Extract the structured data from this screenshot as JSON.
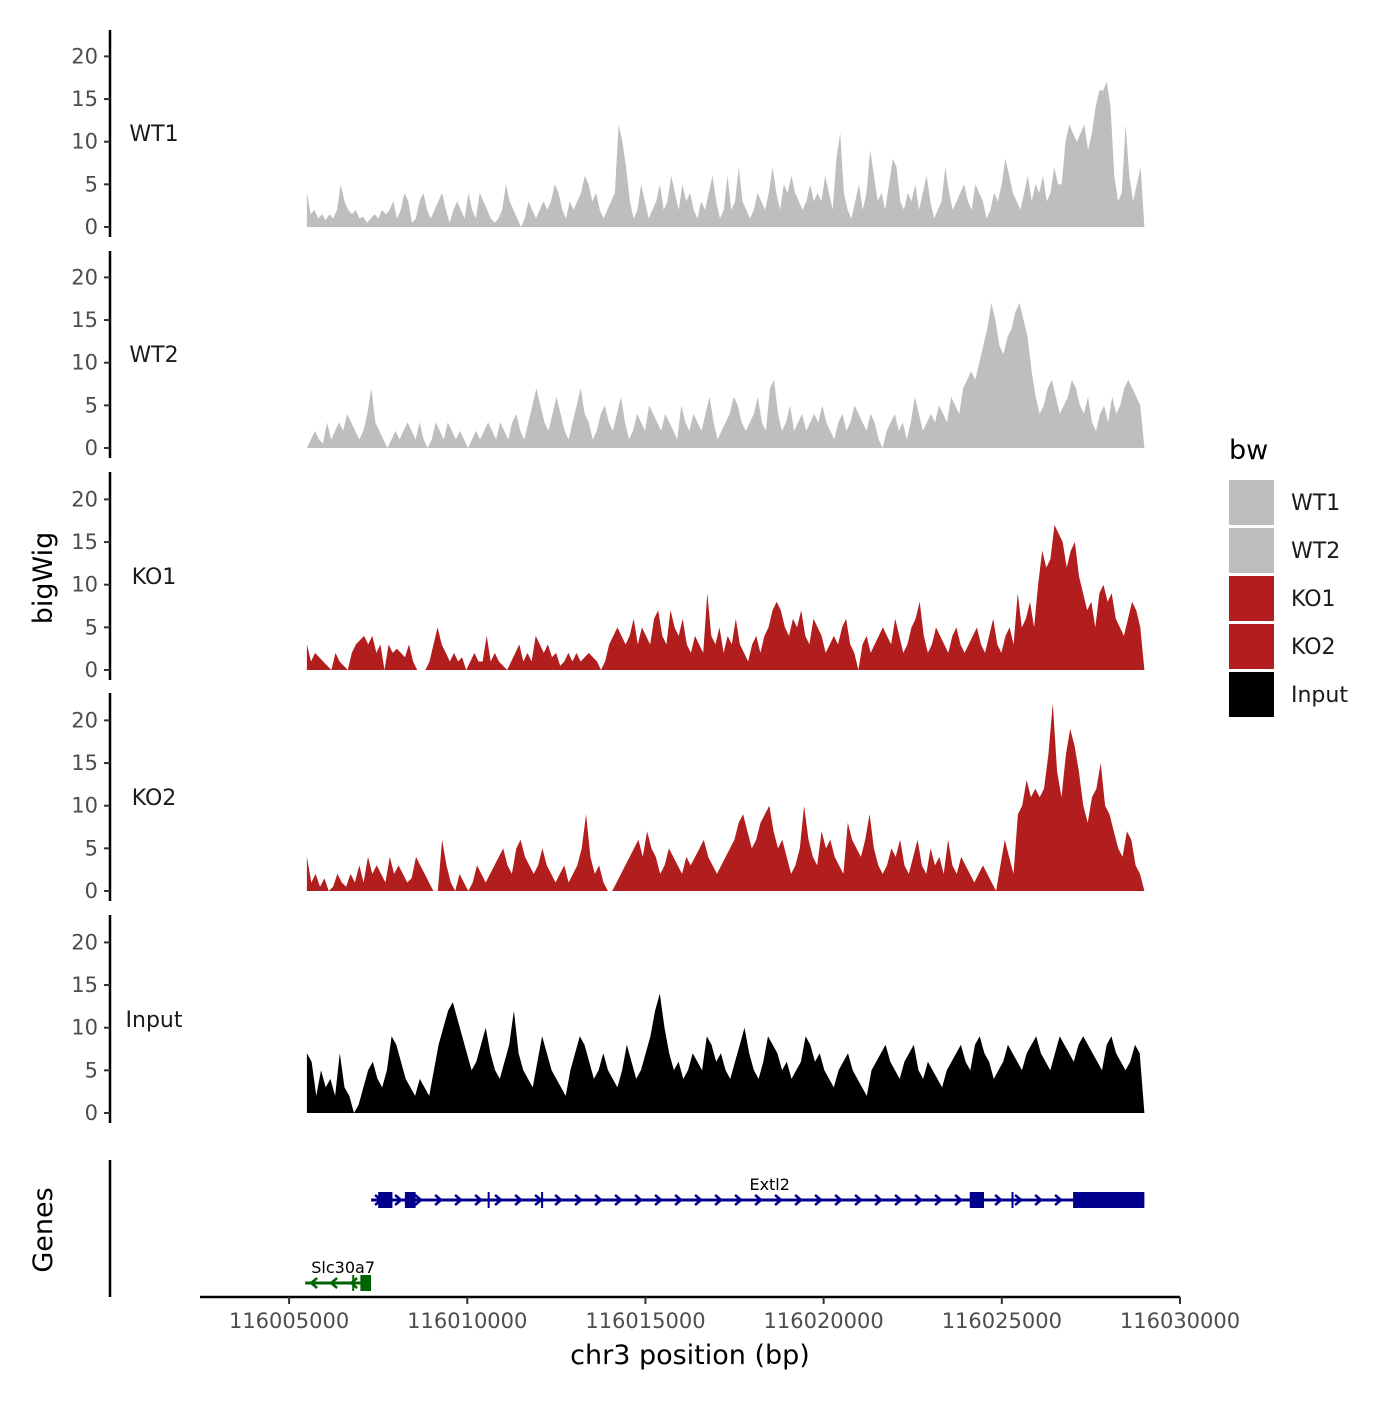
{
  "chart_data": {
    "type": "area",
    "xlabel": "chr3 position (bp)",
    "ylabel": "bigWig",
    "genes_label": "Genes",
    "legend_title": "bw",
    "xlim": [
      116002500,
      116030000
    ],
    "data_start": 116005500,
    "data_end": 116029000,
    "x_ticks": [
      {
        "value": 116005000,
        "label": "116005000"
      },
      {
        "value": 116010000,
        "label": "116010000"
      },
      {
        "value": 116015000,
        "label": "116015000"
      },
      {
        "value": 116020000,
        "label": "116020000"
      },
      {
        "value": 116025000,
        "label": "116025000"
      },
      {
        "value": 116030000,
        "label": "116030000"
      }
    ],
    "ylim": [
      0,
      23
    ],
    "y_ticks": [
      {
        "value": 0,
        "label": "0"
      },
      {
        "value": 5,
        "label": "5"
      },
      {
        "value": 10,
        "label": "10"
      },
      {
        "value": 15,
        "label": "15"
      },
      {
        "value": 20,
        "label": "20"
      }
    ],
    "series": [
      {
        "name": "WT1",
        "color": "#bebebe",
        "values": [
          4,
          1.5,
          2,
          1,
          1.5,
          0.8,
          1.5,
          1,
          2,
          5,
          3,
          2,
          1.5,
          2,
          1,
          1.2,
          0.5,
          1,
          1.5,
          1,
          2,
          1.5,
          2,
          3,
          1,
          2,
          4,
          3,
          0.5,
          1,
          3,
          4,
          2,
          1,
          2,
          3,
          4,
          2,
          0.5,
          2,
          3,
          2,
          1,
          4,
          2,
          1,
          4,
          3,
          2,
          1,
          0.5,
          1,
          2,
          5,
          3,
          2,
          1,
          0,
          1,
          3,
          2,
          1,
          2,
          3,
          2,
          3,
          5,
          4,
          2,
          1,
          3,
          2,
          3,
          4,
          6,
          5,
          3,
          4,
          2,
          1,
          2,
          3,
          4,
          12,
          10,
          7,
          3,
          1,
          2,
          5,
          3,
          1,
          2,
          3,
          5,
          2,
          3,
          6,
          4,
          2,
          5,
          3,
          4,
          2,
          1,
          3,
          2,
          4,
          6,
          3,
          1,
          2,
          6,
          2,
          3,
          7,
          3,
          2,
          1,
          2,
          4,
          3,
          2,
          4,
          7,
          4,
          2,
          5,
          4,
          6,
          4,
          3,
          2,
          3,
          5,
          3,
          4,
          3,
          6,
          4,
          2,
          8,
          11,
          4,
          2,
          1,
          3,
          5,
          2,
          4,
          9,
          6,
          3,
          4,
          2,
          5,
          8,
          7,
          3,
          2,
          4,
          3,
          5,
          2,
          4,
          6,
          3,
          1,
          2,
          3,
          7,
          4,
          2,
          3,
          4,
          5,
          3,
          2,
          5,
          4,
          3,
          1,
          2,
          4,
          3,
          5,
          8,
          6,
          4,
          3,
          2,
          4,
          6,
          3,
          5,
          4,
          6,
          3,
          4,
          7,
          5,
          5,
          10,
          12,
          11,
          10,
          11,
          12,
          9,
          11,
          14,
          16,
          16,
          17,
          14,
          6,
          3,
          4,
          12,
          6,
          3,
          5,
          7,
          0
        ]
      },
      {
        "name": "WT2",
        "color": "#bebebe",
        "values": [
          0,
          1,
          2,
          1,
          0.5,
          3,
          1,
          2,
          3,
          2,
          4,
          3,
          2,
          1,
          2,
          4,
          7,
          3,
          2,
          1,
          0,
          1,
          2,
          1,
          2,
          3,
          2,
          1,
          3,
          1,
          0,
          1,
          3,
          2,
          1,
          3,
          2,
          1,
          2,
          1,
          0,
          1,
          2,
          1,
          2,
          3,
          2,
          1,
          3,
          2,
          1,
          3,
          4,
          2,
          1,
          3,
          5,
          7,
          5,
          3,
          2,
          4,
          6,
          4,
          2,
          1,
          3,
          5,
          7,
          4,
          3,
          1,
          2,
          4,
          5,
          3,
          2,
          4,
          6,
          3,
          1,
          2,
          4,
          3,
          2,
          5,
          4,
          3,
          2,
          4,
          3,
          2,
          1,
          5,
          3,
          2,
          4,
          3,
          2,
          4,
          6,
          3,
          1,
          2,
          3,
          4,
          6,
          5,
          3,
          2,
          3,
          4,
          6,
          3,
          2,
          7,
          8,
          4,
          2,
          3,
          5,
          2,
          3,
          4,
          2,
          3,
          4,
          3,
          5,
          3,
          2,
          1,
          3,
          4,
          2,
          3,
          5,
          4,
          3,
          2,
          4,
          3,
          1,
          0,
          2,
          3,
          4,
          2,
          3,
          1,
          3,
          6,
          4,
          2,
          3,
          4,
          3,
          5,
          4,
          3,
          6,
          5,
          4,
          7,
          8,
          9,
          8,
          10,
          12,
          14,
          17,
          15,
          12,
          11,
          13,
          14,
          16,
          17,
          15,
          13,
          9,
          6,
          4,
          5,
          7,
          8,
          6,
          4,
          5,
          6,
          8,
          7,
          5,
          4,
          6,
          3,
          2,
          4,
          5,
          3,
          6,
          4,
          5,
          7,
          8,
          7,
          6,
          5,
          0
        ]
      },
      {
        "name": "KO1",
        "color": "#b21e1e",
        "values": [
          3,
          1,
          2,
          1.5,
          1,
          0.5,
          0,
          2,
          1,
          0.5,
          0,
          2,
          3,
          3.5,
          4,
          3,
          4,
          2,
          3,
          0,
          3,
          2,
          2.5,
          2,
          1.5,
          3,
          1,
          0,
          0,
          0,
          1,
          3,
          5,
          3,
          2,
          1,
          2,
          1,
          1.5,
          0,
          1,
          2,
          1,
          1,
          4,
          1,
          2,
          1,
          0.5,
          0,
          1,
          2,
          3,
          1,
          2,
          1,
          4,
          3,
          2,
          3,
          1.5,
          2,
          0.5,
          1,
          2,
          1,
          2,
          1,
          1.5,
          2,
          1.5,
          1,
          0,
          1,
          3,
          4,
          5,
          4,
          3,
          4,
          6,
          3,
          5,
          4,
          3,
          6,
          7,
          4,
          3,
          7,
          5,
          4,
          6,
          3,
          2,
          4,
          3,
          2,
          9,
          4,
          3,
          5,
          2,
          4,
          3,
          6,
          3,
          2,
          1,
          3,
          4,
          2,
          4,
          5,
          7,
          8,
          7,
          5,
          4,
          6,
          5,
          7,
          4,
          3,
          6,
          5,
          4,
          2,
          3,
          4,
          3,
          5,
          6,
          3,
          2,
          0,
          3,
          4,
          2,
          3,
          4,
          5,
          4,
          3,
          6,
          4,
          2,
          3,
          5,
          6,
          8,
          4,
          2,
          3,
          5,
          4,
          3,
          2,
          4,
          5,
          3,
          2,
          3,
          4,
          5,
          3,
          2,
          4,
          6,
          3,
          2,
          4,
          5,
          3,
          9,
          5,
          6,
          8,
          5,
          10,
          14,
          12,
          13,
          17,
          16,
          15,
          12,
          14,
          15,
          11,
          9,
          7,
          8,
          5,
          9,
          10,
          8,
          9,
          6,
          5,
          4,
          6,
          8,
          7,
          5,
          0
        ]
      },
      {
        "name": "KO2",
        "color": "#b21e1e",
        "values": [
          4,
          1,
          2,
          0.5,
          1.5,
          0,
          0.5,
          2,
          1,
          0.5,
          2,
          1,
          3,
          1,
          4,
          2,
          3,
          2,
          1,
          4,
          2,
          3,
          2,
          1,
          1.5,
          4,
          3,
          2,
          1,
          0,
          0,
          6,
          3,
          1,
          0,
          2,
          1,
          0,
          1,
          3,
          2,
          1,
          2,
          3,
          4,
          5,
          3,
          2,
          5,
          6,
          4,
          3,
          2,
          3,
          5,
          3,
          2,
          1,
          2,
          3,
          1,
          2,
          3,
          5,
          9,
          4,
          2,
          3,
          1,
          0,
          0,
          1,
          2,
          3,
          4,
          5,
          6,
          4,
          7,
          5,
          4,
          2,
          3,
          5,
          4,
          3,
          2,
          4,
          3,
          4,
          5,
          6,
          4,
          3,
          2,
          3,
          4,
          5,
          6,
          8,
          9,
          7,
          5,
          6,
          8,
          9,
          10,
          7,
          5,
          6,
          4,
          2,
          3,
          5,
          10,
          6,
          4,
          3,
          7,
          5,
          6,
          4,
          3,
          2,
          8,
          6,
          5,
          4,
          6,
          9,
          5,
          3,
          2,
          3,
          5,
          4,
          6,
          3,
          2,
          4,
          6,
          3,
          2,
          5,
          3,
          4,
          2,
          6,
          3,
          2,
          4,
          3,
          2,
          1,
          2,
          3,
          2,
          1,
          0,
          3,
          6,
          4,
          2,
          9,
          10,
          13,
          11,
          12,
          11,
          12,
          16,
          22,
          14,
          11,
          16,
          19,
          17,
          14,
          10,
          8,
          11,
          12,
          15,
          10,
          9,
          7,
          5,
          4,
          7,
          6,
          3,
          2,
          0
        ]
      },
      {
        "name": "Input",
        "color": "#000000",
        "values": [
          7,
          6,
          2,
          5,
          3,
          4,
          2,
          7,
          3,
          2,
          0,
          1,
          3,
          5,
          6,
          4,
          3,
          5,
          9,
          8,
          6,
          4,
          3,
          2,
          4,
          3,
          2,
          5,
          8,
          10,
          12,
          13,
          11,
          9,
          7,
          5,
          6,
          8,
          10,
          7,
          5,
          4,
          6,
          8,
          12,
          7,
          5,
          4,
          3,
          6,
          9,
          7,
          5,
          4,
          3,
          2,
          5,
          7,
          9,
          8,
          6,
          4,
          5,
          7,
          5,
          4,
          3,
          5,
          8,
          6,
          4,
          5,
          7,
          9,
          12,
          14,
          10,
          7,
          5,
          6,
          4,
          5,
          7,
          6,
          5,
          9,
          8,
          6,
          7,
          5,
          4,
          6,
          8,
          10,
          7,
          5,
          4,
          6,
          9,
          8,
          7,
          5,
          6,
          4,
          5,
          6,
          9,
          8,
          6,
          7,
          5,
          4,
          3,
          5,
          6,
          7,
          5,
          4,
          3,
          2,
          5,
          6,
          7,
          8,
          6,
          5,
          4,
          6,
          7,
          8,
          5,
          4,
          6,
          5,
          4,
          3,
          5,
          6,
          7,
          8,
          6,
          5,
          8,
          9,
          7,
          6,
          4,
          5,
          6,
          8,
          7,
          6,
          5,
          7,
          8,
          9,
          7,
          6,
          5,
          7,
          9,
          8,
          7,
          6,
          8,
          9,
          8,
          7,
          6,
          5,
          8,
          9,
          7,
          6,
          5,
          6,
          8,
          7,
          0
        ]
      }
    ],
    "genes": [
      {
        "name": "Extl2",
        "color": "#00008b",
        "start": 116007300,
        "end": 116029000,
        "strand": "+",
        "exons": [
          [
            116007500,
            116007900
          ],
          [
            116008250,
            116008550
          ],
          [
            116024100,
            116024500
          ],
          [
            116027000,
            116029000
          ]
        ],
        "markers": [
          116010600,
          116012100,
          116025300
        ]
      },
      {
        "name": "Slc30a7",
        "color": "#006400",
        "start": 116005450,
        "end": 116007300,
        "strand": "-",
        "exons": [
          [
            116007000,
            116007300
          ]
        ],
        "markers": [
          116006800
        ]
      }
    ]
  }
}
